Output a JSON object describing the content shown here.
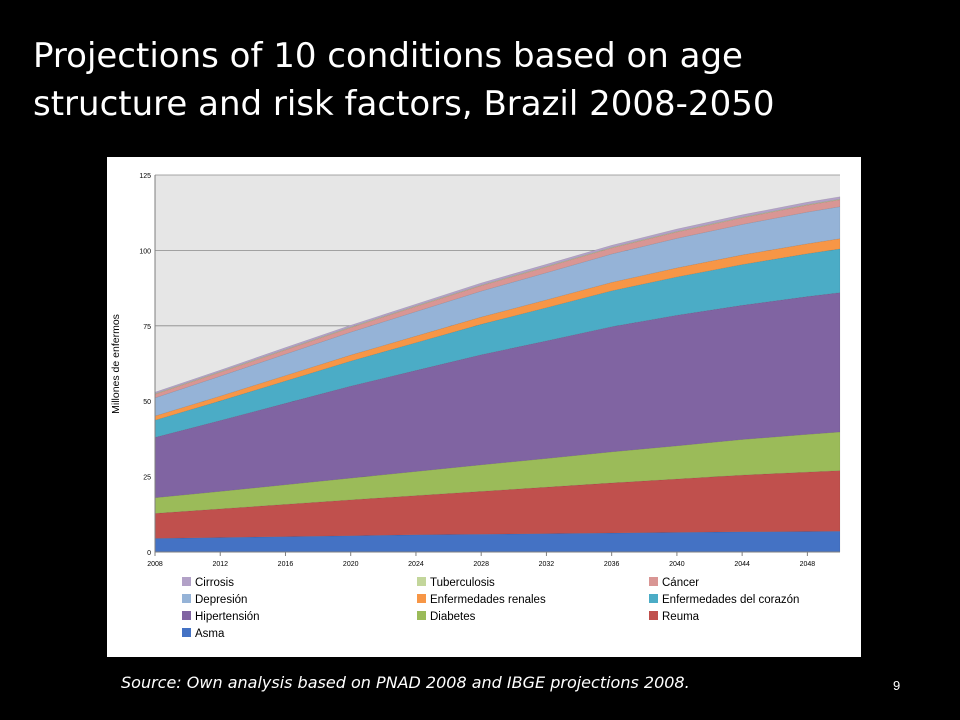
{
  "slide": {
    "title_line1": "Projections of 10 conditions based on age",
    "title_line2": "structure and risk factors, Brazil 2008-2050",
    "source": "Source: Own analysis based on PNAD 2008 and IBGE projections 2008.",
    "page_number": "9"
  },
  "chart_data": {
    "type": "area",
    "stacked": true,
    "title": "",
    "xlabel": "",
    "ylabel": "Millones de enfermos",
    "x": [
      2008,
      2012,
      2016,
      2020,
      2024,
      2028,
      2032,
      2036,
      2040,
      2044,
      2048,
      2050
    ],
    "x_ticks": [
      "2008",
      "2012",
      "2016",
      "2020",
      "2024",
      "2028",
      "2032",
      "2036",
      "2040",
      "2044",
      "2048"
    ],
    "y_ticks": [
      "0",
      "25",
      "50",
      "75",
      "100",
      "125"
    ],
    "ylim": [
      0,
      125
    ],
    "grid": true,
    "legend_position": "bottom",
    "series": [
      {
        "name": "Asma",
        "color": "#4472c4",
        "values": [
          4.5,
          4.8,
          5.1,
          5.4,
          5.7,
          5.9,
          6.1,
          6.3,
          6.5,
          6.7,
          6.8,
          6.9
        ]
      },
      {
        "name": "Reuma",
        "color": "#c0504d",
        "values": [
          8.3,
          9.5,
          10.7,
          11.9,
          13.0,
          14.2,
          15.4,
          16.6,
          17.7,
          18.8,
          19.7,
          20.1
        ]
      },
      {
        "name": "Diabetes",
        "color": "#9bbb59",
        "values": [
          5.2,
          5.8,
          6.5,
          7.2,
          8.0,
          8.8,
          9.5,
          10.3,
          11.0,
          11.8,
          12.5,
          12.8
        ]
      },
      {
        "name": "Hipertensión",
        "color": "#8064a2",
        "values": [
          20.0,
          23.5,
          27.0,
          30.5,
          33.5,
          36.5,
          39.0,
          41.5,
          43.3,
          44.5,
          45.7,
          46.2
        ]
      },
      {
        "name": "Enfermedades del corazón",
        "color": "#4bacc6",
        "values": [
          5.7,
          6.5,
          7.4,
          8.3,
          9.2,
          10.1,
          11.0,
          11.9,
          12.7,
          13.5,
          14.2,
          14.5
        ]
      },
      {
        "name": "Enfermedades renales",
        "color": "#f79646",
        "values": [
          1.4,
          1.6,
          1.8,
          2.0,
          2.2,
          2.4,
          2.6,
          2.8,
          3.0,
          3.2,
          3.3,
          3.4
        ]
      },
      {
        "name": "Depresión",
        "color": "#95b3d7",
        "values": [
          6.0,
          6.6,
          7.1,
          7.6,
          8.1,
          8.6,
          9.0,
          9.4,
          9.8,
          10.1,
          10.5,
          10.6
        ]
      },
      {
        "name": "Cáncer",
        "color": "#d99694",
        "values": [
          1.2,
          1.3,
          1.4,
          1.5,
          1.7,
          1.8,
          1.9,
          2.0,
          2.1,
          2.2,
          2.3,
          2.3
        ]
      },
      {
        "name": "Tuberculosis",
        "color": "#c3d69b",
        "values": [
          0.2,
          0.2,
          0.2,
          0.2,
          0.2,
          0.2,
          0.2,
          0.2,
          0.2,
          0.2,
          0.2,
          0.2
        ]
      },
      {
        "name": "Cirrosis",
        "color": "#b2a1c7",
        "values": [
          0.5,
          0.5,
          0.6,
          0.6,
          0.6,
          0.7,
          0.7,
          0.7,
          0.8,
          0.8,
          0.8,
          0.8
        ]
      }
    ],
    "legend_order": [
      "Cirrosis",
      "Tuberculosis",
      "Cáncer",
      "Depresión",
      "Enfermedades renales",
      "Enfermedades del corazón",
      "Hipertensión",
      "Diabetes",
      "Reuma",
      "Asma"
    ]
  }
}
